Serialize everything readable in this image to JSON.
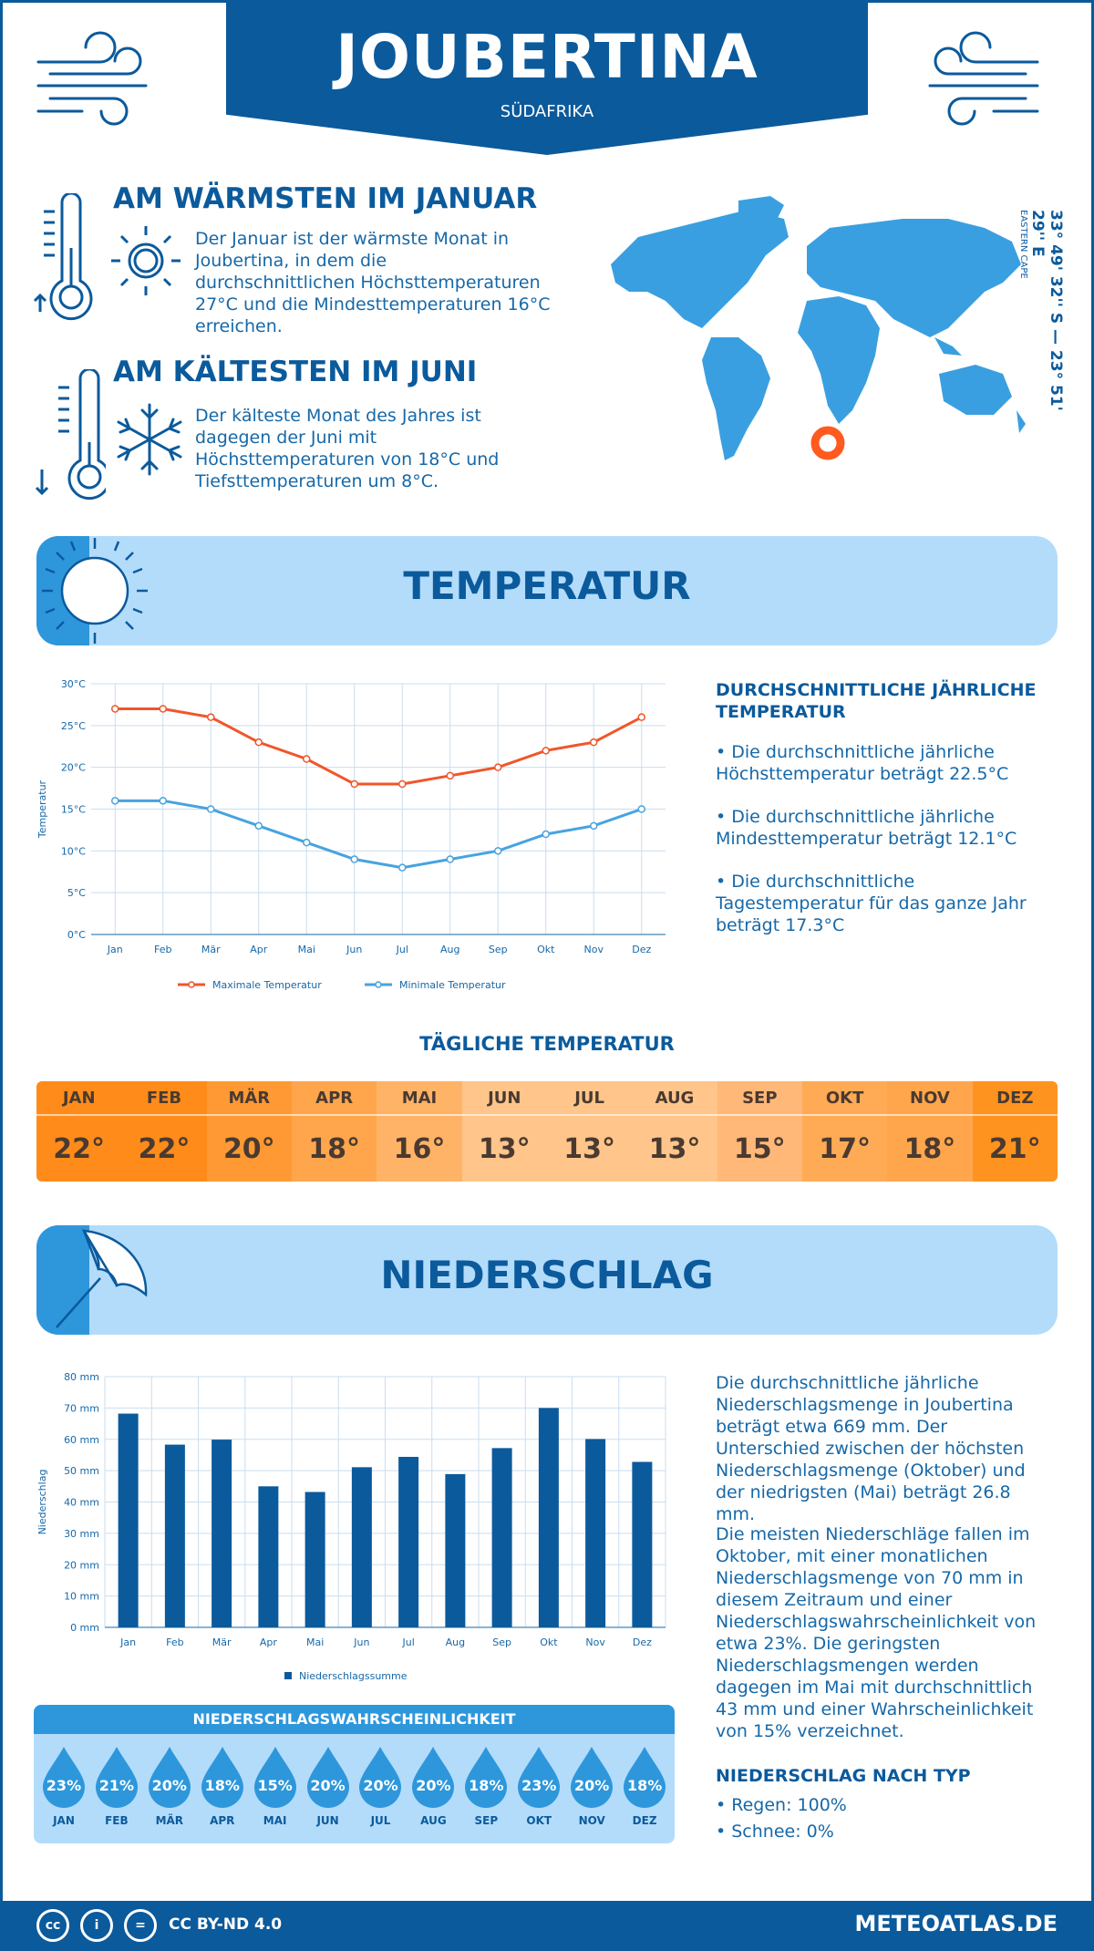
{
  "header": {
    "title": "JOUBERTINA",
    "subtitle": "SÜDAFRIKA"
  },
  "warmest": {
    "title": "AM WÄRMSTEN IM JANUAR",
    "text": "Der Januar ist der wärmste Monat in Joubertina, in dem die durchschnittlichen Höchsttemperaturen 27°C und die Mindesttemperaturen 16°C erreichen."
  },
  "coldest": {
    "title": "AM KÄLTESTEN IM JUNI",
    "text": "Der kälteste Monat des Jahres ist dagegen der Juni mit Höchsttemperaturen von 18°C und Tiefsttemperaturen um 8°C."
  },
  "location": {
    "coords": "33° 49' 32'' S — 23° 51' 29'' E",
    "region": "EASTERN CAPE"
  },
  "temperature_section": {
    "title": "TEMPERATUR",
    "summary_title": "DURCHSCHNITTLICHE JÄHRLICHE TEMPERATUR",
    "bullets": [
      "• Die durchschnittliche jährliche Höchsttemperatur beträgt 22.5°C",
      "• Die durchschnittliche jährliche Mindesttemperatur beträgt 12.1°C",
      "• Die durchschnittliche Tagestemperatur für das ganze Jahr beträgt 17.3°C"
    ]
  },
  "daily": {
    "title": "TÄGLICHE TEMPERATUR",
    "months": [
      "JAN",
      "FEB",
      "MÄR",
      "APR",
      "MAI",
      "JUN",
      "JUL",
      "AUG",
      "SEP",
      "OKT",
      "NOV",
      "DEZ"
    ],
    "values": [
      "22°",
      "22°",
      "20°",
      "18°",
      "16°",
      "13°",
      "13°",
      "13°",
      "15°",
      "17°",
      "18°",
      "21°"
    ],
    "colors": [
      "#ff8c1a",
      "#ff8c1a",
      "#ff9933",
      "#ffa64d",
      "#ffb366",
      "#ffc58a",
      "#ffc58a",
      "#ffc58a",
      "#ffb878",
      "#ffaa55",
      "#ffa64d",
      "#ff931f"
    ]
  },
  "precip_section": {
    "title": "NIEDERSCHLAG",
    "text1": "Die durchschnittliche jährliche Niederschlagsmenge in Joubertina beträgt etwa 669 mm. Der Unterschied zwischen der höchsten Niederschlagsmenge (Oktober) und der niedrigsten (Mai) beträgt 26.8 mm.",
    "text2": "Die meisten Niederschläge fallen im Oktober, mit einer monatlichen Niederschlagsmenge von 70 mm in diesem Zeitraum und einer Niederschlagswahrscheinlichkeit von etwa 23%. Die geringsten Niederschlagsmengen werden dagegen im Mai mit durchschnittlich 43 mm und einer Wahrscheinlichkeit von 15% verzeichnet.",
    "type_title": "NIEDERSCHLAG NACH TYP",
    "types": [
      "• Regen: 100%",
      "• Schnee: 0%"
    ]
  },
  "probability": {
    "title": "NIEDERSCHLAGSWAHRSCHEINLICHKEIT",
    "months": [
      "JAN",
      "FEB",
      "MÄR",
      "APR",
      "MAI",
      "JUN",
      "JUL",
      "AUG",
      "SEP",
      "OKT",
      "NOV",
      "DEZ"
    ],
    "values": [
      "23%",
      "21%",
      "20%",
      "18%",
      "15%",
      "20%",
      "20%",
      "20%",
      "18%",
      "23%",
      "20%",
      "18%"
    ]
  },
  "footer": {
    "license": "CC BY-ND 4.0",
    "site": "METEOATLAS.DE"
  },
  "colors": {
    "brand": "#0b5a9c",
    "accent": "#2e97dc",
    "max_line": "#f0562a",
    "min_line": "#47a3e0",
    "bar": "#0b5a9c"
  },
  "chart_data": [
    {
      "type": "line",
      "categories": [
        "Jan",
        "Feb",
        "Mär",
        "Apr",
        "Mai",
        "Jun",
        "Jul",
        "Aug",
        "Sep",
        "Okt",
        "Nov",
        "Dez"
      ],
      "series": [
        {
          "name": "Maximale Temperatur",
          "values": [
            27,
            27,
            26,
            23,
            21,
            18,
            18,
            19,
            20,
            22,
            23,
            26
          ]
        },
        {
          "name": "Minimale Temperatur",
          "values": [
            16,
            16,
            15,
            13,
            11,
            9,
            8,
            9,
            10,
            12,
            13,
            15
          ]
        }
      ],
      "ylabel": "Temperatur",
      "yticks": [
        "0°C",
        "5°C",
        "10°C",
        "15°C",
        "20°C",
        "25°C",
        "30°C"
      ],
      "ylim": [
        0,
        30
      ],
      "grid": true,
      "legend": "bottom"
    },
    {
      "type": "bar",
      "categories": [
        "Jan",
        "Feb",
        "Mär",
        "Apr",
        "Mai",
        "Jun",
        "Jul",
        "Aug",
        "Sep",
        "Okt",
        "Nov",
        "Dez"
      ],
      "series": [
        {
          "name": "Niederschlagssumme",
          "values": [
            68.2,
            58.3,
            59.9,
            45.0,
            43.2,
            51.1,
            54.4,
            48.9,
            57.2,
            70.0,
            60.1,
            52.8
          ]
        }
      ],
      "ylabel": "Niederschlag",
      "yticks": [
        "0 mm",
        "10 mm",
        "20 mm",
        "30 mm",
        "40 mm",
        "50 mm",
        "60 mm",
        "70 mm",
        "80 mm"
      ],
      "ylim": [
        0,
        80
      ],
      "grid": true,
      "legend": "bottom"
    }
  ]
}
